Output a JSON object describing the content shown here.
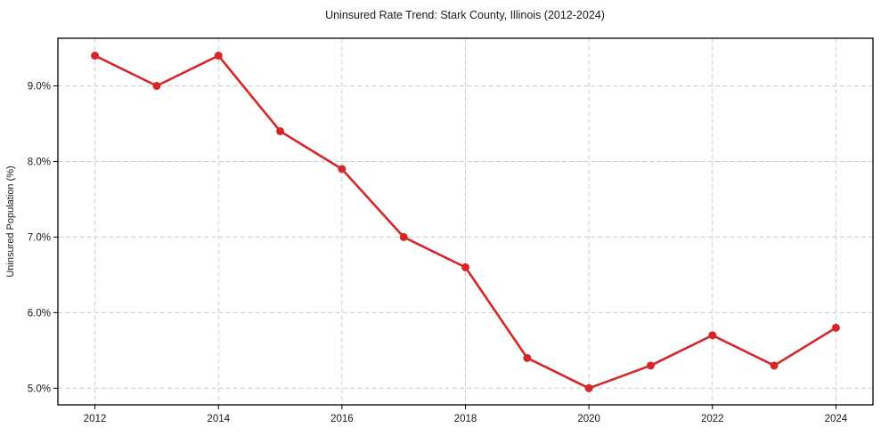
{
  "chart_data": {
    "type": "line",
    "title": "Uninsured Rate Trend: Stark County, Illinois (2012-2024)",
    "xlabel": "",
    "ylabel": "Uninsured Population (%)",
    "x": [
      2012,
      2013,
      2014,
      2015,
      2016,
      2017,
      2018,
      2019,
      2020,
      2021,
      2022,
      2023,
      2024
    ],
    "values": [
      9.4,
      9.0,
      9.4,
      8.4,
      7.9,
      7.0,
      6.6,
      5.4,
      5.0,
      5.3,
      5.7,
      5.3,
      5.8
    ],
    "xticks": [
      2012,
      2014,
      2016,
      2018,
      2020,
      2022,
      2024
    ],
    "yticks": [
      5.0,
      6.0,
      7.0,
      8.0,
      9.0
    ],
    "ytick_suffix": "%",
    "xlim": [
      2011.4,
      2024.6
    ],
    "ylim": [
      4.78,
      9.63
    ],
    "grid": true,
    "grid_style": "dashed",
    "legend_position": "none",
    "line_color": "#d62728",
    "marker_color": "#d62728",
    "grid_color": "#cccccc",
    "axis_color": "#000000",
    "text_color": "#1a1a1a",
    "background": "#ffffff"
  }
}
